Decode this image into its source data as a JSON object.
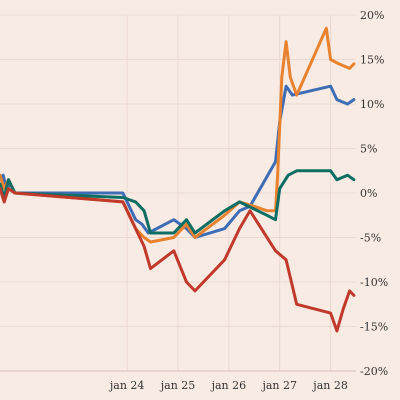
{
  "chart_data": {
    "type": "line",
    "title": "",
    "xlabel": "",
    "ylabel": "",
    "x_ticks": [
      {
        "x": "2024-01-24",
        "label": "jan 24"
      },
      {
        "x": "2024-01-25",
        "label": "jan 25"
      },
      {
        "x": "2024-01-26",
        "label": "jan 26"
      },
      {
        "x": "2024-01-27",
        "label": "jan 27"
      },
      {
        "x": "2024-01-28",
        "label": "jan 28"
      }
    ],
    "y_ticks": [
      {
        "value": 20,
        "label": "20%"
      },
      {
        "value": 15,
        "label": "15%"
      },
      {
        "value": 10,
        "label": "10%"
      },
      {
        "value": 5,
        "label": "5%"
      },
      {
        "value": 0,
        "label": "0%"
      },
      {
        "value": -5,
        "label": "-5%"
      },
      {
        "value": -10,
        "label": "-10%"
      },
      {
        "value": -15,
        "label": "-15%"
      },
      {
        "value": -20,
        "label": "-20%"
      }
    ],
    "xlim": [
      "2024-01-21 12:00",
      "2024-01-28 12:00"
    ],
    "ylim": [
      -20,
      20
    ],
    "grid": true,
    "legend": "none",
    "series": [
      {
        "color": "#3e6db5",
        "points": [
          [
            "2024-01-21 12:00",
            1.5
          ],
          [
            "2024-01-21 13:30",
            2.0
          ],
          [
            "2024-01-21 15:00",
            0.5
          ],
          [
            "2024-01-21 17:00",
            1.0
          ],
          [
            "2024-01-21 19:00",
            0.0
          ],
          [
            "2024-01-23 22:00",
            0.0
          ],
          [
            "2024-01-24 04:00",
            -3.0
          ],
          [
            "2024-01-24 07:00",
            -3.5
          ],
          [
            "2024-01-24 10:00",
            -4.5
          ],
          [
            "2024-01-24 22:00",
            -3.0
          ],
          [
            "2024-01-25 04:00",
            -4.0
          ],
          [
            "2024-01-25 08:00",
            -5.0
          ],
          [
            "2024-01-25 22:00",
            -4.0
          ],
          [
            "2024-01-26 05:00",
            -2.0
          ],
          [
            "2024-01-26 10:00",
            -1.5
          ],
          [
            "2024-01-26 22:00",
            3.5
          ],
          [
            "2024-01-27 00:00",
            8.0
          ],
          [
            "2024-01-27 03:00",
            12.0
          ],
          [
            "2024-01-27 06:00",
            11.0
          ],
          [
            "2024-01-28 00:00",
            12.0
          ],
          [
            "2024-01-28 03:00",
            10.5
          ],
          [
            "2024-01-28 08:00",
            10.0
          ],
          [
            "2024-01-28 11:00",
            10.5
          ]
        ]
      },
      {
        "color": "#e8822e",
        "points": [
          [
            "2024-01-21 12:00",
            2.0
          ],
          [
            "2024-01-21 14:00",
            0.5
          ],
          [
            "2024-01-21 16:00",
            1.5
          ],
          [
            "2024-01-21 19:00",
            0.0
          ],
          [
            "2024-01-23 22:00",
            -1.0
          ],
          [
            "2024-01-24 04:00",
            -4.0
          ],
          [
            "2024-01-24 08:00",
            -5.0
          ],
          [
            "2024-01-24 11:00",
            -5.5
          ],
          [
            "2024-01-24 22:00",
            -5.0
          ],
          [
            "2024-01-25 04:00",
            -3.5
          ],
          [
            "2024-01-25 08:00",
            -5.0
          ],
          [
            "2024-01-25 22:00",
            -2.5
          ],
          [
            "2024-01-26 05:00",
            -1.0
          ],
          [
            "2024-01-26 12:00",
            -1.5
          ],
          [
            "2024-01-26 18:00",
            -2.0
          ],
          [
            "2024-01-26 22:00",
            -2.0
          ],
          [
            "2024-01-26 23:00",
            2.0
          ],
          [
            "2024-01-27 01:00",
            13.0
          ],
          [
            "2024-01-27 03:00",
            17.0
          ],
          [
            "2024-01-27 05:00",
            13.0
          ],
          [
            "2024-01-27 08:00",
            11.0
          ],
          [
            "2024-01-27 22:00",
            18.5
          ],
          [
            "2024-01-28 00:00",
            15.0
          ],
          [
            "2024-01-28 04:00",
            14.5
          ],
          [
            "2024-01-28 09:00",
            14.0
          ],
          [
            "2024-01-28 11:00",
            14.5
          ]
        ]
      },
      {
        "color": "#0f6e63",
        "points": [
          [
            "2024-01-21 12:00",
            1.0
          ],
          [
            "2024-01-21 14:00",
            -0.5
          ],
          [
            "2024-01-21 16:00",
            1.5
          ],
          [
            "2024-01-21 19:00",
            0.0
          ],
          [
            "2024-01-23 22:00",
            -0.5
          ],
          [
            "2024-01-24 04:00",
            -1.0
          ],
          [
            "2024-01-24 08:00",
            -2.0
          ],
          [
            "2024-01-24 11:00",
            -4.5
          ],
          [
            "2024-01-24 22:00",
            -4.5
          ],
          [
            "2024-01-25 04:00",
            -3.0
          ],
          [
            "2024-01-25 08:00",
            -4.5
          ],
          [
            "2024-01-25 22:00",
            -2.0
          ],
          [
            "2024-01-26 05:00",
            -1.0
          ],
          [
            "2024-01-26 18:00",
            -2.5
          ],
          [
            "2024-01-26 22:00",
            -3.0
          ],
          [
            "2024-01-27 00:00",
            0.5
          ],
          [
            "2024-01-27 04:00",
            2.0
          ],
          [
            "2024-01-27 08:00",
            2.5
          ],
          [
            "2024-01-28 00:00",
            2.5
          ],
          [
            "2024-01-28 03:00",
            1.5
          ],
          [
            "2024-01-28 08:00",
            2.0
          ],
          [
            "2024-01-28 11:00",
            1.5
          ]
        ]
      },
      {
        "color": "#c0392b",
        "points": [
          [
            "2024-01-21 12:00",
            0.5
          ],
          [
            "2024-01-21 14:00",
            -1.0
          ],
          [
            "2024-01-21 16:00",
            0.5
          ],
          [
            "2024-01-21 19:00",
            0.0
          ],
          [
            "2024-01-23 22:00",
            -1.0
          ],
          [
            "2024-01-24 04:00",
            -4.0
          ],
          [
            "2024-01-24 08:00",
            -6.0
          ],
          [
            "2024-01-24 11:00",
            -8.5
          ],
          [
            "2024-01-24 22:00",
            -6.5
          ],
          [
            "2024-01-25 04:00",
            -10.0
          ],
          [
            "2024-01-25 08:00",
            -11.0
          ],
          [
            "2024-01-25 22:00",
            -7.5
          ],
          [
            "2024-01-26 05:00",
            -4.0
          ],
          [
            "2024-01-26 10:00",
            -2.0
          ],
          [
            "2024-01-26 22:00",
            -6.5
          ],
          [
            "2024-01-27 03:00",
            -7.5
          ],
          [
            "2024-01-27 08:00",
            -12.5
          ],
          [
            "2024-01-28 00:00",
            -13.5
          ],
          [
            "2024-01-28 03:00",
            -15.5
          ],
          [
            "2024-01-28 06:00",
            -13.0
          ],
          [
            "2024-01-28 09:00",
            -11.0
          ],
          [
            "2024-01-28 11:00",
            -11.5
          ]
        ]
      }
    ]
  }
}
